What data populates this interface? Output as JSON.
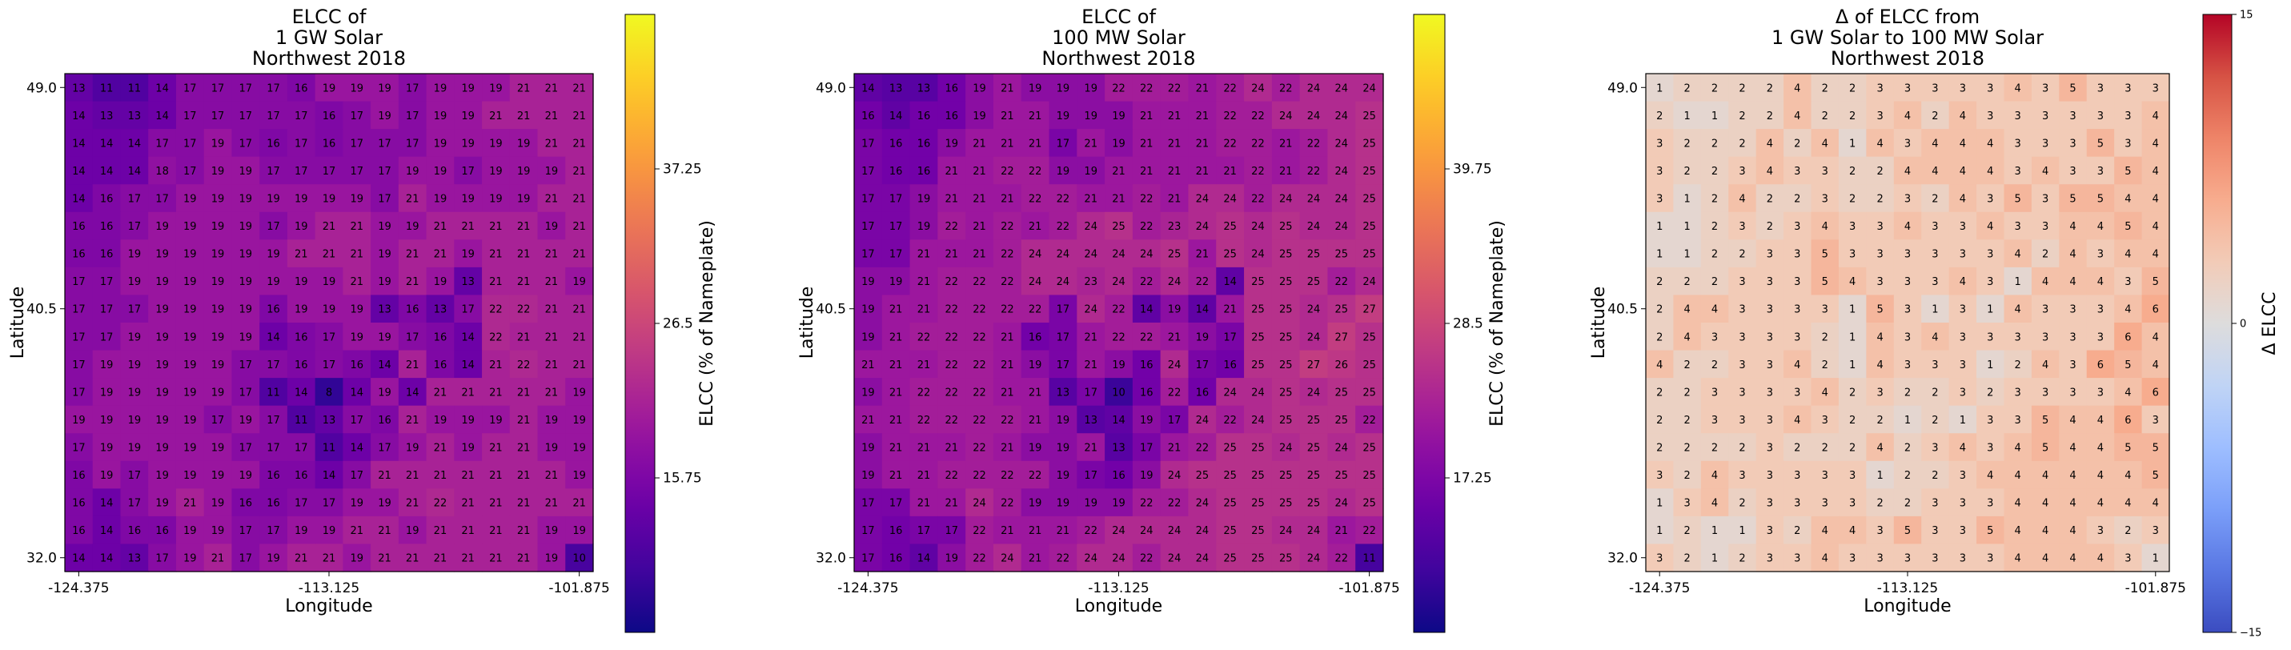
{
  "chart_data": [
    {
      "type": "heatmap",
      "title": [
        "ELCC of",
        "1 GW Solar",
        "Northwest 2018"
      ],
      "xlabel": "Longitude",
      "ylabel": "Latitude",
      "x_ticks": [
        "-124.375",
        "-113.125",
        "-101.875"
      ],
      "y_ticks": [
        "49.0",
        "40.5",
        "32.0"
      ],
      "colorbar": {
        "label": "ELCC (% of Nameplate)",
        "ticks": [
          "37.25",
          "26.5",
          "15.75"
        ],
        "tick_values": [
          37.25,
          26.5,
          15.75
        ],
        "range": [
          5,
          48
        ],
        "colormap": "plasma"
      },
      "vrange": [
        5,
        48
      ],
      "colormap": "plasma",
      "label_color": "#ffffff",
      "rows": [
        [
          13,
          11,
          11,
          14,
          17,
          17,
          17,
          17,
          16,
          19,
          19,
          19,
          17,
          19,
          19,
          19,
          21,
          21,
          21
        ],
        [
          14,
          13,
          13,
          14,
          17,
          17,
          17,
          17,
          17,
          16,
          17,
          19,
          17,
          19,
          19,
          21,
          21,
          21,
          21
        ],
        [
          14,
          14,
          14,
          17,
          17,
          19,
          17,
          16,
          17,
          16,
          17,
          17,
          17,
          19,
          19,
          19,
          19,
          21,
          21
        ],
        [
          14,
          14,
          14,
          18,
          17,
          19,
          19,
          17,
          17,
          17,
          17,
          17,
          19,
          19,
          17,
          19,
          19,
          19,
          21
        ],
        [
          14,
          16,
          17,
          17,
          19,
          19,
          19,
          19,
          19,
          19,
          19,
          17,
          21,
          19,
          19,
          19,
          19,
          21,
          21
        ],
        [
          16,
          16,
          17,
          19,
          19,
          19,
          19,
          17,
          19,
          21,
          21,
          19,
          19,
          21,
          21,
          21,
          21,
          19,
          21
        ],
        [
          16,
          16,
          19,
          19,
          19,
          19,
          19,
          19,
          21,
          21,
          21,
          19,
          21,
          21,
          19,
          21,
          21,
          21,
          21
        ],
        [
          17,
          17,
          19,
          19,
          19,
          19,
          19,
          19,
          19,
          19,
          21,
          19,
          21,
          19,
          13,
          21,
          21,
          21,
          19
        ],
        [
          17,
          17,
          17,
          19,
          19,
          19,
          19,
          16,
          19,
          19,
          19,
          13,
          16,
          13,
          17,
          22,
          22,
          21,
          21
        ],
        [
          17,
          17,
          19,
          19,
          19,
          19,
          19,
          14,
          16,
          17,
          19,
          19,
          17,
          16,
          14,
          22,
          21,
          21,
          21
        ],
        [
          17,
          19,
          19,
          19,
          19,
          19,
          17,
          17,
          16,
          17,
          16,
          14,
          21,
          16,
          14,
          21,
          22,
          21,
          21
        ],
        [
          17,
          19,
          19,
          19,
          19,
          19,
          17,
          11,
          14,
          8,
          14,
          19,
          14,
          21,
          21,
          21,
          21,
          21,
          19
        ],
        [
          19,
          19,
          19,
          19,
          19,
          17,
          19,
          17,
          11,
          13,
          17,
          16,
          21,
          19,
          19,
          19,
          21,
          19,
          19
        ],
        [
          17,
          19,
          19,
          19,
          19,
          19,
          17,
          17,
          17,
          11,
          14,
          17,
          19,
          21,
          19,
          21,
          21,
          19,
          19
        ],
        [
          16,
          19,
          17,
          19,
          19,
          19,
          19,
          16,
          16,
          14,
          17,
          21,
          21,
          21,
          21,
          21,
          21,
          21,
          19
        ],
        [
          16,
          14,
          17,
          19,
          21,
          19,
          16,
          16,
          17,
          17,
          19,
          19,
          21,
          22,
          21,
          21,
          21,
          21,
          21
        ],
        [
          16,
          14,
          16,
          16,
          19,
          19,
          17,
          17,
          19,
          19,
          21,
          21,
          19,
          21,
          21,
          21,
          21,
          19,
          19
        ],
        [
          14,
          14,
          13,
          17,
          19,
          21,
          17,
          19,
          21,
          21,
          19,
          21,
          21,
          21,
          21,
          21,
          21,
          19,
          10
        ]
      ]
    },
    {
      "type": "heatmap",
      "title": [
        "ELCC of",
        "100 MW Solar",
        "Northwest 2018"
      ],
      "xlabel": "Longitude",
      "ylabel": "Latitude",
      "x_ticks": [
        "-124.375",
        "-113.125",
        "-101.875"
      ],
      "y_ticks": [
        "49.0",
        "40.5",
        "32.0"
      ],
      "colorbar": {
        "label": "ELCC (% of Nameplate)",
        "ticks": [
          "39.75",
          "28.5",
          "17.25"
        ],
        "tick_values": [
          39.75,
          28.5,
          17.25
        ],
        "range": [
          6,
          51
        ],
        "colormap": "plasma"
      },
      "vrange": [
        6,
        51
      ],
      "colormap": "plasma",
      "label_color": "#ffffff",
      "rows": [
        [
          14,
          13,
          13,
          16,
          19,
          21,
          19,
          19,
          19,
          22,
          22,
          22,
          21,
          22,
          24,
          22,
          24,
          24,
          24
        ],
        [
          16,
          14,
          16,
          16,
          19,
          21,
          21,
          19,
          19,
          19,
          21,
          21,
          21,
          22,
          22,
          24,
          24,
          24,
          25
        ],
        [
          17,
          16,
          16,
          19,
          21,
          21,
          21,
          17,
          21,
          19,
          21,
          21,
          21,
          22,
          22,
          21,
          22,
          24,
          25
        ],
        [
          17,
          16,
          16,
          21,
          21,
          22,
          22,
          19,
          19,
          21,
          21,
          21,
          21,
          21,
          22,
          21,
          22,
          24,
          25
        ],
        [
          17,
          17,
          19,
          21,
          21,
          21,
          22,
          22,
          21,
          21,
          22,
          21,
          24,
          24,
          22,
          24,
          24,
          24,
          25
        ],
        [
          17,
          17,
          19,
          22,
          21,
          22,
          21,
          22,
          24,
          25,
          22,
          23,
          24,
          25,
          24,
          25,
          24,
          24,
          25
        ],
        [
          17,
          17,
          21,
          21,
          21,
          22,
          24,
          24,
          24,
          24,
          24,
          25,
          21,
          25,
          24,
          25,
          25,
          25,
          25
        ],
        [
          19,
          19,
          21,
          22,
          22,
          22,
          24,
          24,
          23,
          24,
          22,
          24,
          22,
          14,
          25,
          25,
          25,
          22,
          24
        ],
        [
          19,
          21,
          21,
          22,
          22,
          22,
          22,
          17,
          24,
          22,
          14,
          19,
          14,
          21,
          25,
          25,
          24,
          25,
          27
        ],
        [
          19,
          21,
          22,
          22,
          22,
          21,
          16,
          17,
          21,
          22,
          22,
          21,
          19,
          17,
          25,
          25,
          24,
          27,
          25
        ],
        [
          21,
          21,
          21,
          22,
          22,
          21,
          19,
          17,
          21,
          19,
          16,
          24,
          17,
          16,
          25,
          25,
          27,
          26,
          25
        ],
        [
          19,
          21,
          22,
          22,
          22,
          21,
          21,
          13,
          17,
          10,
          16,
          22,
          16,
          24,
          24,
          25,
          24,
          25,
          25
        ],
        [
          21,
          21,
          22,
          22,
          22,
          22,
          21,
          19,
          13,
          14,
          19,
          17,
          24,
          22,
          24,
          25,
          25,
          25,
          22
        ],
        [
          19,
          21,
          21,
          21,
          22,
          21,
          19,
          19,
          21,
          13,
          17,
          21,
          22,
          25,
          25,
          24,
          25,
          24,
          25
        ],
        [
          19,
          21,
          21,
          22,
          22,
          22,
          22,
          19,
          17,
          16,
          19,
          24,
          25,
          25,
          25,
          25,
          25,
          25,
          25
        ],
        [
          17,
          17,
          21,
          21,
          24,
          22,
          19,
          19,
          19,
          19,
          22,
          22,
          24,
          25,
          25,
          25,
          25,
          24,
          25
        ],
        [
          17,
          16,
          17,
          17,
          22,
          21,
          21,
          21,
          22,
          24,
          24,
          24,
          24,
          25,
          25,
          24,
          24,
          21,
          22
        ],
        [
          17,
          16,
          14,
          19,
          22,
          24,
          21,
          22,
          24,
          24,
          22,
          24,
          24,
          25,
          25,
          25,
          24,
          22,
          11
        ]
      ]
    },
    {
      "type": "heatmap",
      "title": [
        "Δ of ELCC from",
        "1 GW Solar to 100 MW Solar",
        "Northwest 2018"
      ],
      "xlabel": "Longitude",
      "ylabel": "Latitude",
      "x_ticks": [
        "-124.375",
        "-113.125",
        "-101.875"
      ],
      "y_ticks": [
        "49.0",
        "40.5",
        "32.0"
      ],
      "colorbar": {
        "label": "Δ ELCC",
        "ticks": [
          "15",
          "0",
          "−15"
        ],
        "tick_values": [
          15,
          0,
          -15
        ],
        "range": [
          -15,
          15
        ],
        "colormap": "coolwarm"
      },
      "vrange": [
        -15,
        15
      ],
      "colormap": "coolwarm",
      "label_color": "#3a3a3a",
      "rows": [
        [
          1,
          2,
          2,
          2,
          2,
          4,
          2,
          2,
          3,
          3,
          3,
          3,
          3,
          4,
          3,
          5,
          3,
          3,
          3
        ],
        [
          2,
          1,
          1,
          2,
          2,
          4,
          2,
          2,
          3,
          4,
          2,
          4,
          3,
          3,
          3,
          3,
          3,
          3,
          4
        ],
        [
          3,
          2,
          2,
          2,
          4,
          2,
          4,
          1,
          4,
          3,
          4,
          4,
          4,
          3,
          3,
          3,
          5,
          3,
          4
        ],
        [
          3,
          2,
          2,
          3,
          4,
          3,
          3,
          2,
          2,
          4,
          4,
          4,
          4,
          3,
          4,
          3,
          3,
          5,
          4
        ],
        [
          3,
          1,
          2,
          4,
          2,
          2,
          3,
          2,
          2,
          3,
          2,
          4,
          3,
          5,
          3,
          5,
          5,
          4,
          4
        ],
        [
          1,
          1,
          2,
          3,
          2,
          3,
          4,
          3,
          3,
          4,
          3,
          3,
          4,
          3,
          3,
          4,
          4,
          5,
          4
        ],
        [
          1,
          1,
          2,
          2,
          3,
          3,
          5,
          3,
          3,
          3,
          3,
          3,
          3,
          4,
          2,
          4,
          3,
          4,
          4
        ],
        [
          2,
          2,
          2,
          3,
          3,
          3,
          5,
          4,
          3,
          3,
          3,
          4,
          3,
          1,
          4,
          4,
          4,
          3,
          5
        ],
        [
          2,
          4,
          4,
          3,
          3,
          3,
          3,
          1,
          5,
          3,
          1,
          3,
          1,
          4,
          3,
          3,
          3,
          4,
          6
        ],
        [
          2,
          4,
          3,
          3,
          3,
          3,
          2,
          1,
          4,
          3,
          4,
          3,
          3,
          3,
          3,
          3,
          3,
          6,
          4
        ],
        [
          4,
          2,
          2,
          3,
          3,
          4,
          2,
          1,
          4,
          3,
          3,
          3,
          1,
          2,
          4,
          3,
          6,
          5,
          4
        ],
        [
          2,
          2,
          3,
          3,
          3,
          3,
          4,
          2,
          3,
          2,
          2,
          3,
          2,
          3,
          3,
          3,
          3,
          4,
          6
        ],
        [
          2,
          2,
          3,
          3,
          3,
          4,
          3,
          2,
          2,
          1,
          2,
          1,
          3,
          3,
          5,
          4,
          4,
          6,
          3
        ],
        [
          2,
          2,
          2,
          2,
          3,
          2,
          2,
          2,
          4,
          2,
          3,
          4,
          3,
          4,
          5,
          4,
          4,
          5,
          5
        ],
        [
          3,
          2,
          4,
          3,
          3,
          3,
          3,
          3,
          1,
          2,
          2,
          3,
          4,
          4,
          4,
          4,
          4,
          4,
          5
        ],
        [
          1,
          3,
          4,
          2,
          3,
          3,
          3,
          3,
          2,
          2,
          3,
          3,
          3,
          4,
          4,
          4,
          4,
          4,
          4
        ],
        [
          1,
          2,
          1,
          1,
          3,
          2,
          4,
          4,
          3,
          5,
          3,
          3,
          5,
          4,
          4,
          4,
          3,
          2,
          3
        ],
        [
          3,
          2,
          1,
          2,
          3,
          3,
          4,
          3,
          3,
          3,
          3,
          3,
          3,
          4,
          4,
          4,
          4,
          3,
          1
        ]
      ]
    }
  ]
}
